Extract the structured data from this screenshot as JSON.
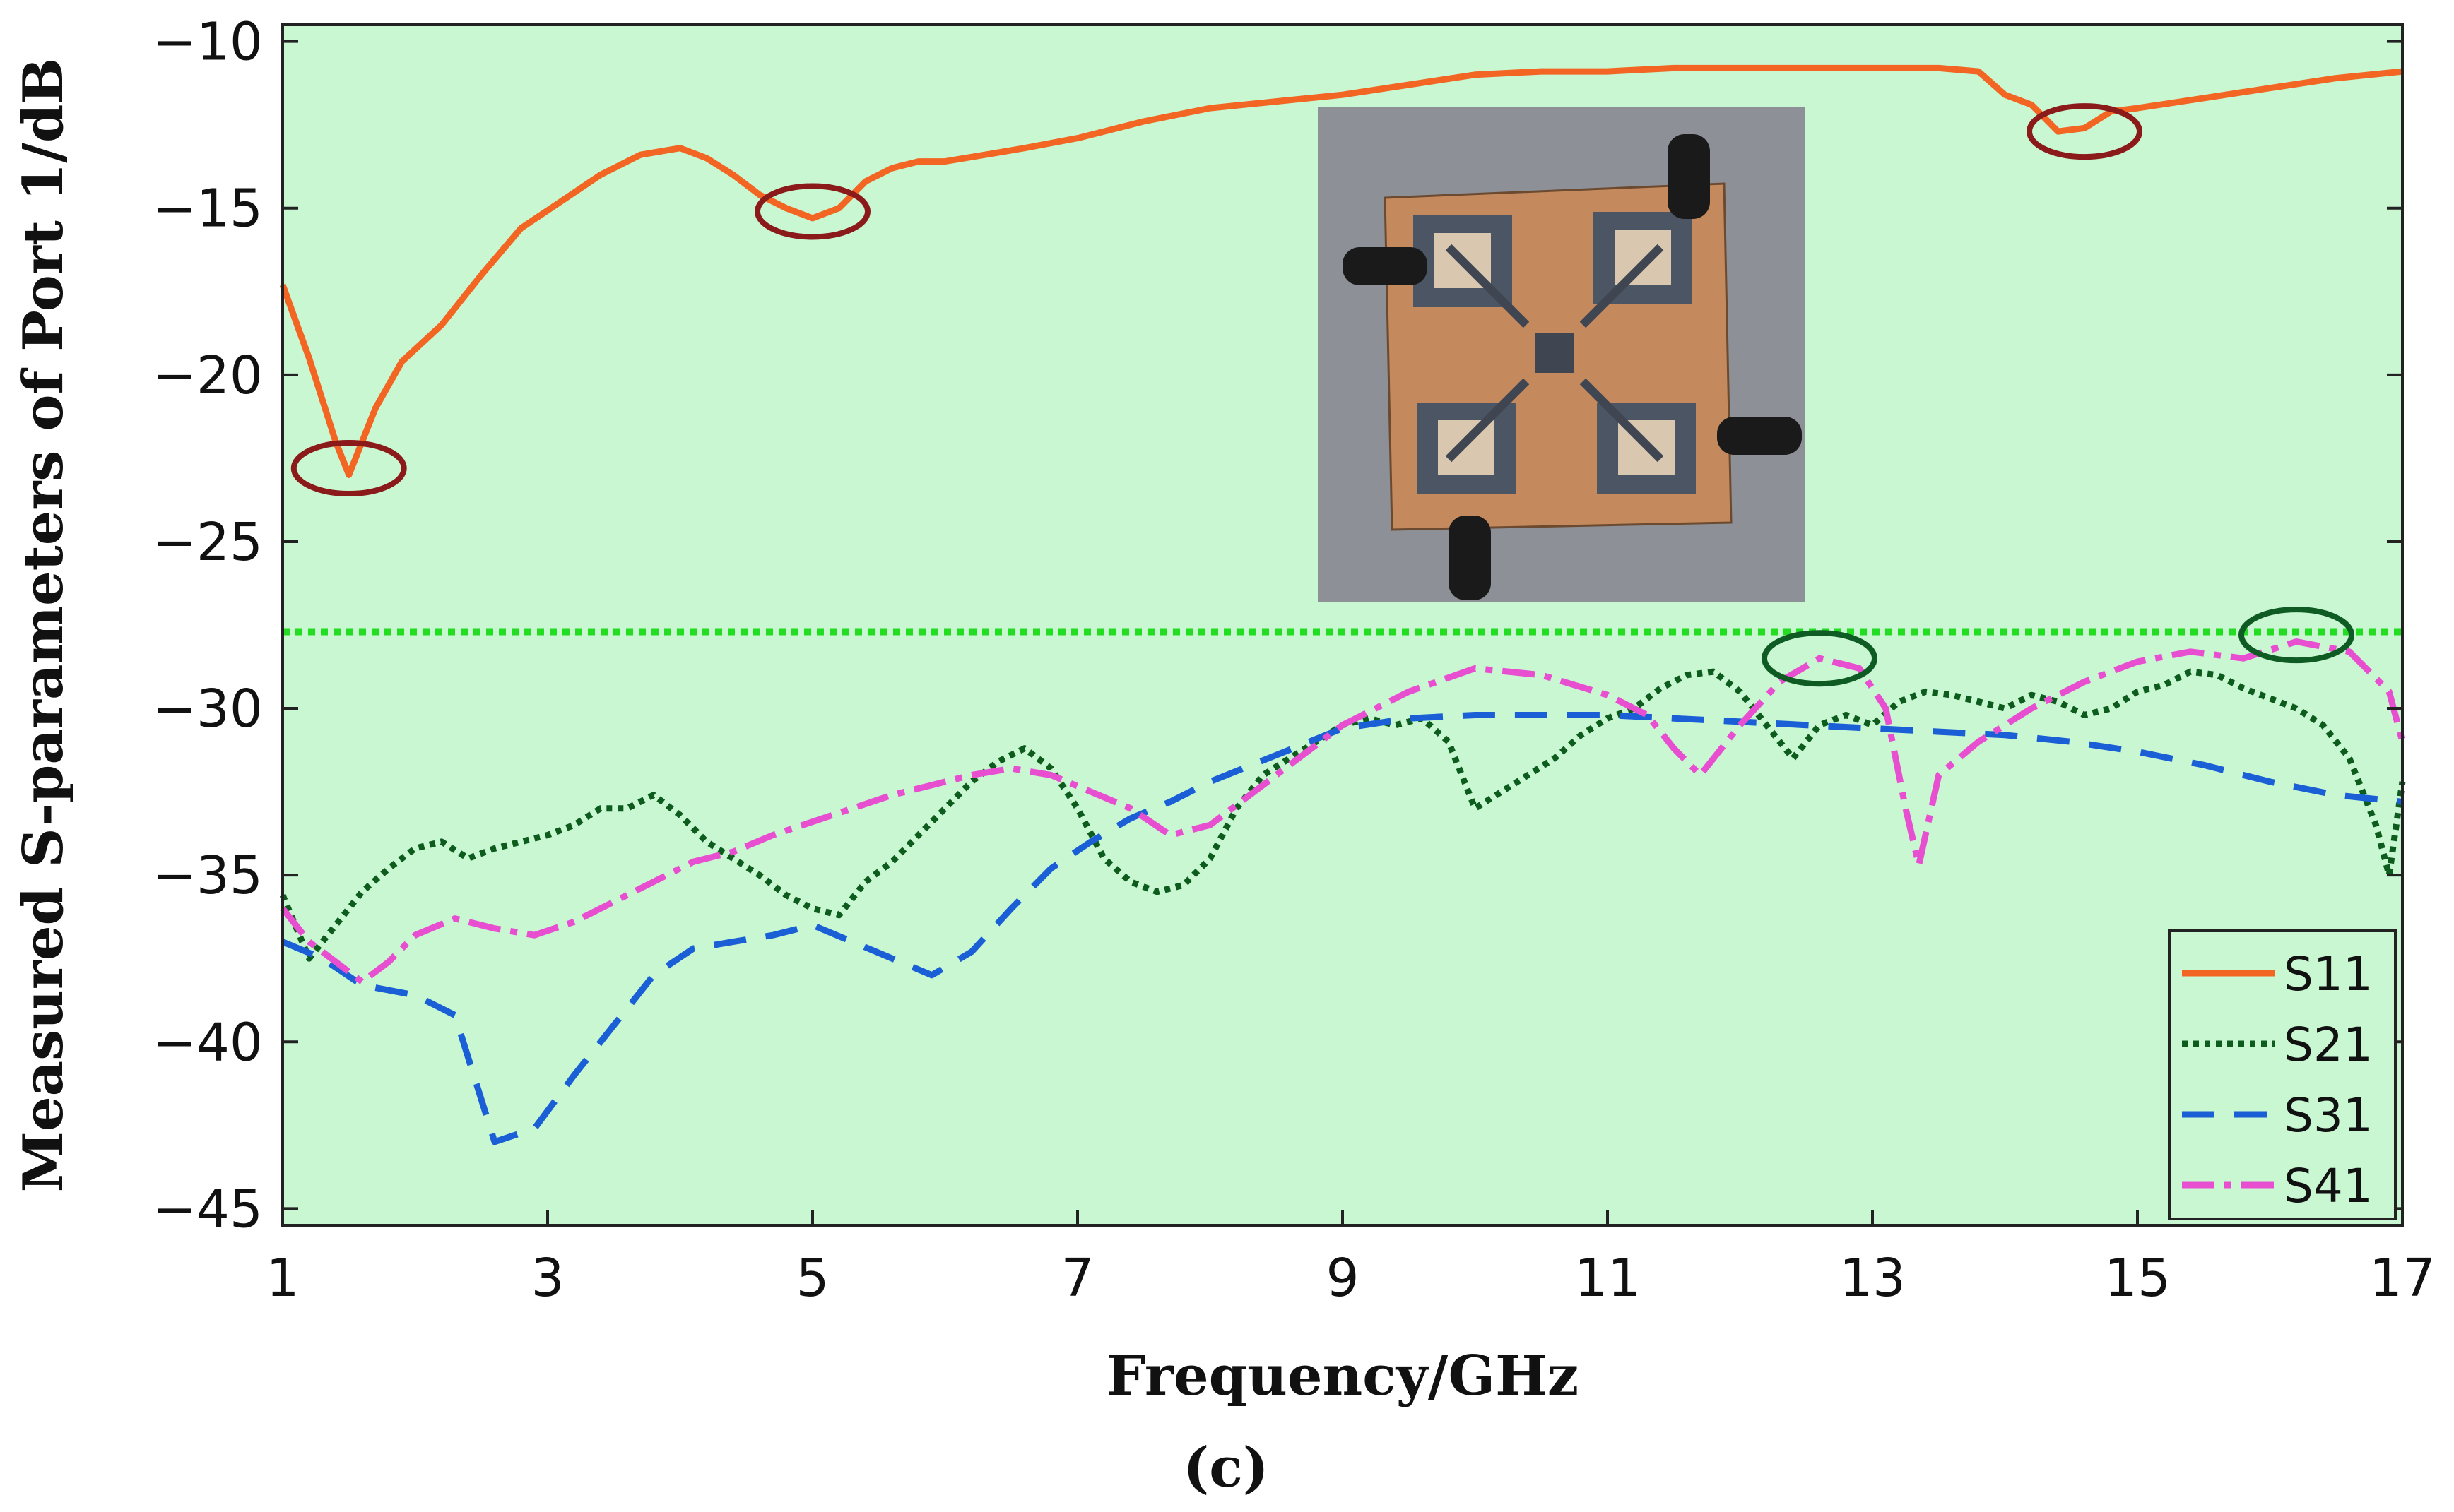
{
  "chart_data": {
    "type": "line",
    "title": "",
    "xlabel": "Frequency/GHz",
    "ylabel": "Measured S-parameters of Port 1/dB",
    "caption": "(c)",
    "xlim": [
      1,
      17
    ],
    "ylim": [
      -45.5,
      -9.5
    ],
    "xticks": [
      1,
      3,
      5,
      7,
      9,
      11,
      13,
      15,
      17
    ],
    "yticks": [
      -10,
      -15,
      -20,
      -25,
      -30,
      -35,
      -40,
      -45
    ],
    "xtick_labels": [
      "1",
      "3",
      "5",
      "7",
      "9",
      "11",
      "13",
      "15",
      "17"
    ],
    "ytick_labels": [
      "−10",
      "−15",
      "−20",
      "−25",
      "−30",
      "−35",
      "−40",
      "−45"
    ],
    "grid": false,
    "background_color": "#c8f7d2",
    "legend_position": "bottom-right",
    "reference_line": {
      "y": -27.7,
      "color": "#22dd22",
      "style": "dotted"
    },
    "series": [
      {
        "name": "S11",
        "color": "#f26522",
        "style": "solid",
        "x": [
          1.0,
          1.2,
          1.4,
          1.5,
          1.7,
          1.9,
          2.2,
          2.5,
          2.8,
          3.1,
          3.4,
          3.7,
          4.0,
          4.2,
          4.4,
          4.6,
          4.8,
          5.0,
          5.2,
          5.4,
          5.6,
          5.8,
          6.0,
          6.3,
          6.6,
          7.0,
          7.5,
          8.0,
          8.5,
          9.0,
          9.5,
          10.0,
          10.5,
          11.0,
          11.5,
          12.0,
          12.5,
          13.0,
          13.5,
          13.8,
          14.0,
          14.2,
          14.4,
          14.6,
          14.8,
          15.0,
          15.5,
          16.0,
          16.5,
          17.0
        ],
        "values": [
          -17.3,
          -19.5,
          -22.0,
          -23.0,
          -21.0,
          -19.6,
          -18.5,
          -17.0,
          -15.6,
          -14.8,
          -14.0,
          -13.4,
          -13.2,
          -13.5,
          -14.0,
          -14.6,
          -15.0,
          -15.3,
          -15.0,
          -14.2,
          -13.8,
          -13.6,
          -13.6,
          -13.4,
          -13.2,
          -12.9,
          -12.4,
          -12.0,
          -11.8,
          -11.6,
          -11.3,
          -11.0,
          -10.9,
          -10.9,
          -10.8,
          -10.8,
          -10.8,
          -10.8,
          -10.8,
          -10.9,
          -11.6,
          -11.9,
          -12.7,
          -12.6,
          -12.1,
          -12.0,
          -11.7,
          -11.4,
          -11.1,
          -10.9
        ]
      },
      {
        "name": "S21",
        "color": "#0d5c1e",
        "style": "dotted",
        "x": [
          1.0,
          1.2,
          1.4,
          1.6,
          1.8,
          2.0,
          2.2,
          2.4,
          2.6,
          2.8,
          3.0,
          3.2,
          3.4,
          3.6,
          3.8,
          4.0,
          4.2,
          4.4,
          4.6,
          4.8,
          5.0,
          5.2,
          5.4,
          5.6,
          5.8,
          6.0,
          6.2,
          6.4,
          6.6,
          6.8,
          7.0,
          7.2,
          7.4,
          7.6,
          7.8,
          8.0,
          8.2,
          8.4,
          8.6,
          8.8,
          9.0,
          9.2,
          9.4,
          9.6,
          9.8,
          10.0,
          10.2,
          10.4,
          10.6,
          10.8,
          11.0,
          11.2,
          11.4,
          11.6,
          11.8,
          12.0,
          12.2,
          12.4,
          12.6,
          12.8,
          13.0,
          13.2,
          13.4,
          13.6,
          13.8,
          14.0,
          14.2,
          14.4,
          14.6,
          14.8,
          15.0,
          15.2,
          15.4,
          15.6,
          15.8,
          16.0,
          16.2,
          16.4,
          16.6,
          16.8,
          16.9,
          17.0
        ],
        "values": [
          -35.6,
          -37.5,
          -36.5,
          -35.5,
          -34.8,
          -34.2,
          -34.0,
          -34.5,
          -34.2,
          -34.0,
          -33.8,
          -33.5,
          -33.0,
          -33.0,
          -32.6,
          -33.2,
          -34.0,
          -34.5,
          -35.0,
          -35.6,
          -36.0,
          -36.2,
          -35.2,
          -34.6,
          -33.8,
          -33.0,
          -32.2,
          -31.6,
          -31.2,
          -31.8,
          -33.0,
          -34.5,
          -35.2,
          -35.5,
          -35.3,
          -34.5,
          -33.0,
          -32.0,
          -31.5,
          -31.0,
          -30.5,
          -30.3,
          -30.5,
          -30.3,
          -31.0,
          -33.0,
          -32.5,
          -32.0,
          -31.5,
          -30.8,
          -30.3,
          -30.0,
          -29.4,
          -29.0,
          -28.9,
          -29.5,
          -30.5,
          -31.5,
          -30.5,
          -30.2,
          -30.5,
          -29.8,
          -29.5,
          -29.6,
          -29.8,
          -30.0,
          -29.6,
          -29.8,
          -30.2,
          -30.0,
          -29.5,
          -29.3,
          -28.9,
          -29.0,
          -29.4,
          -29.7,
          -30.0,
          -30.5,
          -31.5,
          -33.5,
          -35.0,
          -32.2
        ]
      },
      {
        "name": "S31",
        "color": "#1a5fd6",
        "style": "dashed",
        "x": [
          1.0,
          1.3,
          1.6,
          2.0,
          2.3,
          2.6,
          2.9,
          3.2,
          3.5,
          3.8,
          4.1,
          4.4,
          4.7,
          5.0,
          5.3,
          5.6,
          5.9,
          6.2,
          6.5,
          6.8,
          7.1,
          7.4,
          7.7,
          8.0,
          8.5,
          9.0,
          9.5,
          10.0,
          10.5,
          11.0,
          11.5,
          12.0,
          12.5,
          13.0,
          13.5,
          14.0,
          14.5,
          15.0,
          15.5,
          16.0,
          16.5,
          17.0
        ],
        "values": [
          -37.0,
          -37.5,
          -38.3,
          -38.6,
          -39.2,
          -43.0,
          -42.6,
          -41.0,
          -39.5,
          -38.0,
          -37.2,
          -37.0,
          -36.8,
          -36.5,
          -37.0,
          -37.5,
          -38.0,
          -37.3,
          -36.0,
          -34.8,
          -34.0,
          -33.3,
          -32.8,
          -32.2,
          -31.4,
          -30.6,
          -30.3,
          -30.2,
          -30.2,
          -30.2,
          -30.3,
          -30.4,
          -30.5,
          -30.6,
          -30.7,
          -30.8,
          -31.0,
          -31.3,
          -31.7,
          -32.2,
          -32.6,
          -32.8
        ]
      },
      {
        "name": "S41",
        "color": "#e84fd0",
        "style": "dash-dot",
        "x": [
          1.0,
          1.2,
          1.4,
          1.6,
          1.8,
          2.0,
          2.3,
          2.6,
          2.9,
          3.2,
          3.5,
          3.8,
          4.1,
          4.4,
          4.7,
          5.0,
          5.3,
          5.6,
          5.9,
          6.2,
          6.5,
          6.8,
          7.1,
          7.4,
          7.7,
          8.0,
          8.5,
          9.0,
          9.5,
          10.0,
          10.5,
          11.0,
          11.3,
          11.5,
          11.7,
          12.0,
          12.3,
          12.6,
          12.9,
          13.1,
          13.25,
          13.35,
          13.5,
          13.8,
          14.2,
          14.6,
          15.0,
          15.4,
          15.8,
          16.2,
          16.6,
          16.9,
          17.0
        ],
        "values": [
          -36.0,
          -37.0,
          -37.6,
          -38.2,
          -37.6,
          -36.8,
          -36.3,
          -36.6,
          -36.8,
          -36.4,
          -35.8,
          -35.2,
          -34.6,
          -34.3,
          -33.8,
          -33.4,
          -33.0,
          -32.6,
          -32.3,
          -32.0,
          -31.8,
          -32.0,
          -32.5,
          -33.0,
          -33.8,
          -33.5,
          -32.0,
          -30.5,
          -29.5,
          -28.8,
          -29.0,
          -29.6,
          -30.2,
          -31.2,
          -32.0,
          -30.5,
          -29.2,
          -28.5,
          -28.8,
          -30.0,
          -33.0,
          -34.7,
          -32.0,
          -31.0,
          -30.0,
          -29.2,
          -28.6,
          -28.3,
          -28.5,
          -28.0,
          -28.3,
          -29.5,
          -31.0
        ]
      }
    ],
    "annotations": [
      {
        "shape": "ellipse",
        "x": 1.5,
        "y": -22.8,
        "color": "#8b1a1a",
        "target_series": "S11"
      },
      {
        "shape": "ellipse",
        "x": 5.0,
        "y": -15.1,
        "color": "#8b1a1a",
        "target_series": "S11"
      },
      {
        "shape": "ellipse",
        "x": 14.6,
        "y": -12.7,
        "color": "#8b1a1a",
        "target_series": "S11"
      },
      {
        "shape": "ellipse",
        "x": 12.6,
        "y": -28.5,
        "color": "#0f5b24",
        "target_series": "S41"
      },
      {
        "shape": "ellipse",
        "x": 16.2,
        "y": -27.8,
        "color": "#0f5b24",
        "target_series": "S41"
      }
    ],
    "inset_image": {
      "subject": "fabricated four-port antenna board photo",
      "board_color": "#c48a5e",
      "backdrop_color": "#8d9096",
      "connector_color": "#1a1a1a"
    }
  }
}
